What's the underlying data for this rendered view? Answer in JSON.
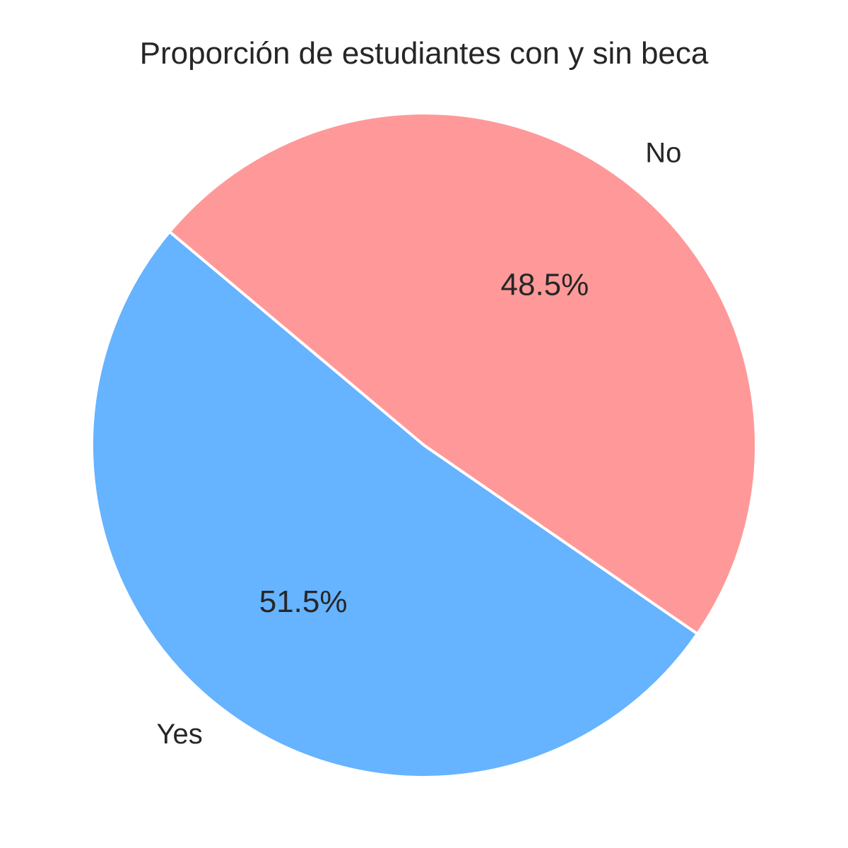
{
  "chart_data": {
    "type": "pie",
    "title": "Proporción de estudiantes con y sin beca",
    "categories": [
      "Yes",
      "No"
    ],
    "values": [
      51.5,
      48.5
    ],
    "percent_labels": [
      "51.5%",
      "48.5%"
    ],
    "colors": [
      "#66b3ff",
      "#ff9999"
    ],
    "start_angle": 140,
    "counterclockwise": true
  }
}
